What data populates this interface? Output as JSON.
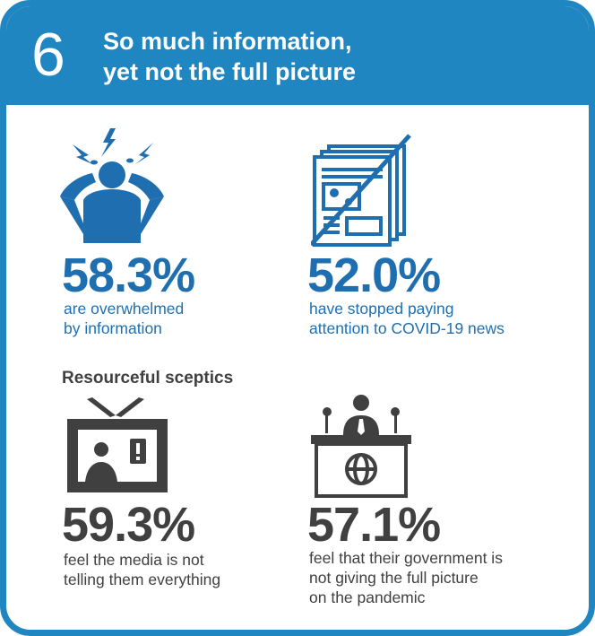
{
  "header": {
    "number": "6",
    "title_line1": "So much information,",
    "title_line2": "yet not the full picture"
  },
  "stats": [
    {
      "value": "58.3%",
      "desc_line1": "are overwhelmed",
      "desc_line2": "by information",
      "icon": "overwhelmed-person-icon"
    },
    {
      "value": "52.0%",
      "desc_line1": "have stopped paying",
      "desc_line2": "attention to COVID-19 news",
      "icon": "crossed-out-newspaper-icon"
    },
    {
      "value": "59.3%",
      "desc_line1": "feel the media is not",
      "desc_line2": "telling them everything",
      "icon": "television-icon"
    },
    {
      "value": "57.1%",
      "desc_line1": "feel that their government is",
      "desc_line2": "not giving the full picture",
      "desc_line3": "on the pandemic",
      "icon": "government-podium-icon"
    }
  ],
  "section_label": "Resourceful sceptics",
  "colors": {
    "primary_blue": "#1f86c2",
    "stat_blue": "#1f6fb0",
    "dark_grey": "#404040"
  }
}
